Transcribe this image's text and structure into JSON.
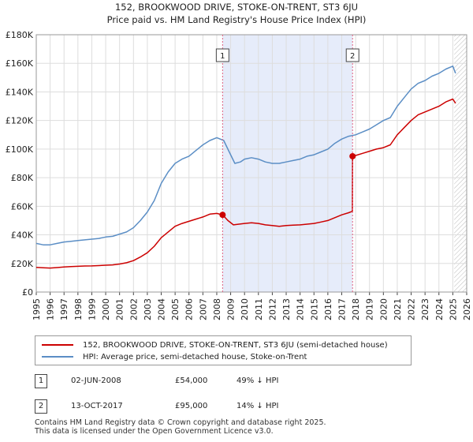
{
  "title_line1": "152, BROOKWOOD DRIVE, STOKE-ON-TRENT, ST3 6JU",
  "title_line2": "Price paid vs. HM Land Registry's House Price Index (HPI)",
  "colors": {
    "property": "#cc0000",
    "hpi": "#5b8ec5",
    "shade": "#e6ecfa",
    "grid": "#dddddd",
    "marker_line": "#e06080"
  },
  "chart_data": {
    "type": "line",
    "ylim": [
      0,
      180000
    ],
    "xlim": [
      1995,
      2026
    ],
    "y_ticks": [
      0,
      20000,
      40000,
      60000,
      80000,
      100000,
      120000,
      140000,
      160000,
      180000
    ],
    "y_tick_labels": [
      "£0",
      "£20K",
      "£40K",
      "£60K",
      "£80K",
      "£100K",
      "£120K",
      "£140K",
      "£160K",
      "£180K"
    ],
    "x_ticks": [
      1995,
      1996,
      1997,
      1998,
      1999,
      2000,
      2001,
      2002,
      2003,
      2004,
      2005,
      2006,
      2007,
      2008,
      2009,
      2010,
      2011,
      2012,
      2013,
      2014,
      2015,
      2016,
      2017,
      2018,
      2019,
      2020,
      2021,
      2022,
      2023,
      2024,
      2025,
      2026
    ],
    "x_tick_labels": [
      "1995",
      "1996",
      "1997",
      "1998",
      "1999",
      "2000",
      "2001",
      "2002",
      "2003",
      "2004",
      "2005",
      "2006",
      "2007",
      "2008",
      "2009",
      "2010",
      "2011",
      "2012",
      "2013",
      "2014",
      "2015",
      "2016",
      "2017",
      "2018",
      "2019",
      "2020",
      "2021",
      "2022",
      "2023",
      "2024",
      "2025",
      "2026"
    ],
    "shaded_span": [
      2008.42,
      2017.78
    ],
    "future_hatch_from": 2025.1,
    "series": [
      {
        "name": "152, BROOKWOOD DRIVE, STOKE-ON-TRENT, ST3 6JU (semi-detached house)",
        "x": [
          1995.0,
          1995.5,
          1996.0,
          1996.5,
          1997.0,
          1997.5,
          1998.0,
          1998.5,
          1999.0,
          1999.5,
          2000.0,
          2000.5,
          2001.0,
          2001.5,
          2002.0,
          2002.5,
          2003.0,
          2003.5,
          2004.0,
          2004.5,
          2005.0,
          2005.5,
          2006.0,
          2006.5,
          2007.0,
          2007.5,
          2008.0,
          2008.42,
          2008.8,
          2009.2,
          2009.6,
          2010.0,
          2010.5,
          2011.0,
          2011.5,
          2012.0,
          2012.5,
          2013.0,
          2013.5,
          2014.0,
          2014.5,
          2015.0,
          2015.5,
          2016.0,
          2016.5,
          2017.0,
          2017.5,
          2017.77,
          2017.78,
          2018.0,
          2018.5,
          2019.0,
          2019.5,
          2020.0,
          2020.5,
          2021.0,
          2021.5,
          2022.0,
          2022.5,
          2023.0,
          2023.5,
          2024.0,
          2024.5,
          2025.0,
          2025.2
        ],
        "values": [
          17200,
          17000,
          16800,
          17100,
          17500,
          17800,
          18000,
          18200,
          18300,
          18500,
          18800,
          19000,
          19600,
          20500,
          22000,
          24500,
          27500,
          32000,
          38000,
          42000,
          46000,
          48000,
          49500,
          51000,
          52500,
          54500,
          55000,
          54000,
          50000,
          47000,
          47500,
          48000,
          48500,
          48000,
          47000,
          46500,
          46000,
          46500,
          46800,
          47000,
          47500,
          48000,
          49000,
          50000,
          52000,
          54000,
          55500,
          56500,
          95000,
          95500,
          97000,
          98500,
          100000,
          101000,
          103000,
          110000,
          115000,
          120000,
          124000,
          126000,
          128000,
          130000,
          133000,
          135000,
          132000
        ]
      },
      {
        "name": "HPI: Average price, semi-detached house, Stoke-on-Trent",
        "x": [
          1995.0,
          1995.5,
          1996.0,
          1996.5,
          1997.0,
          1997.5,
          1998.0,
          1998.5,
          1999.0,
          1999.5,
          2000.0,
          2000.5,
          2001.0,
          2001.5,
          2002.0,
          2002.5,
          2003.0,
          2003.5,
          2004.0,
          2004.5,
          2005.0,
          2005.5,
          2006.0,
          2006.5,
          2007.0,
          2007.5,
          2008.0,
          2008.5,
          2008.9,
          2009.3,
          2009.7,
          2010.0,
          2010.5,
          2011.0,
          2011.5,
          2012.0,
          2012.5,
          2013.0,
          2013.5,
          2014.0,
          2014.5,
          2015.0,
          2015.5,
          2016.0,
          2016.5,
          2017.0,
          2017.5,
          2018.0,
          2018.5,
          2019.0,
          2019.5,
          2020.0,
          2020.5,
          2021.0,
          2021.5,
          2022.0,
          2022.5,
          2023.0,
          2023.5,
          2024.0,
          2024.5,
          2025.0,
          2025.2
        ],
        "values": [
          34000,
          33000,
          33000,
          34000,
          35000,
          35500,
          36000,
          36500,
          37000,
          37500,
          38500,
          39000,
          40500,
          42000,
          45000,
          50000,
          56000,
          64000,
          76000,
          84000,
          90000,
          93000,
          95000,
          99000,
          103000,
          106000,
          108000,
          106000,
          98000,
          90000,
          91000,
          93000,
          94000,
          93000,
          91000,
          90000,
          90000,
          91000,
          92000,
          93000,
          95000,
          96000,
          98000,
          100000,
          104000,
          107000,
          109000,
          110000,
          112000,
          114000,
          117000,
          120000,
          122000,
          130000,
          136000,
          142000,
          146000,
          148000,
          151000,
          153000,
          156000,
          158000,
          153000
        ]
      }
    ],
    "annotations": [
      {
        "label": "1",
        "x": 2008.42,
        "y": 54000
      },
      {
        "label": "2",
        "x": 2017.78,
        "y": 95000
      }
    ]
  },
  "legend": {
    "property": "152, BROOKWOOD DRIVE, STOKE-ON-TRENT, ST3 6JU (semi-detached house)",
    "hpi": "HPI: Average price, semi-detached house, Stoke-on-Trent"
  },
  "transactions": [
    {
      "num": "1",
      "date": "02-JUN-2008",
      "price": "£54,000",
      "hpi": "49% ↓ HPI"
    },
    {
      "num": "2",
      "date": "13-OCT-2017",
      "price": "£95,000",
      "hpi": "14% ↓ HPI"
    }
  ],
  "footer_line1": "Contains HM Land Registry data © Crown copyright and database right 2025.",
  "footer_line2": "This data is licensed under the Open Government Licence v3.0."
}
